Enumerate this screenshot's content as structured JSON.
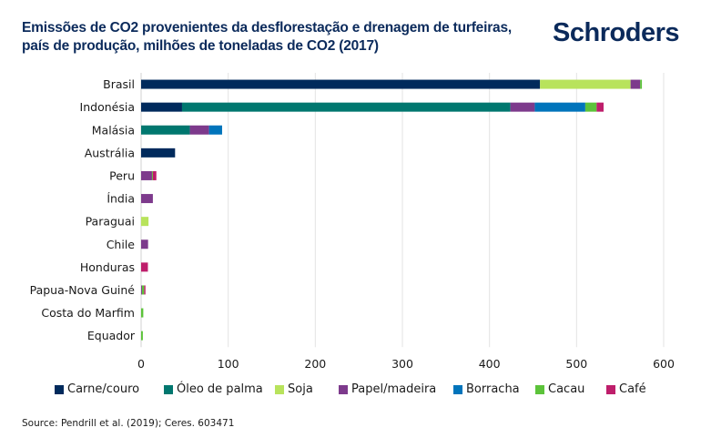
{
  "header": {
    "title": "Emissões de CO2 provenientes da desflorestação e drenagem de turfeiras, país de produção, milhões de toneladas de CO2 (2017)",
    "logo": "Schroders"
  },
  "source": "Source: Pendrill et al. (2019); Ceres. 603471",
  "chart_data": {
    "type": "bar",
    "orientation": "horizontal",
    "stacked": true,
    "title": "Emissões de CO2 provenientes da desflorestação e drenagem de turfeiras, país de produção, milhões de toneladas de CO2 (2017)",
    "xlabel": "",
    "ylabel": "",
    "xlim": [
      0,
      600
    ],
    "xticks": [
      0,
      100,
      200,
      300,
      400,
      500,
      600
    ],
    "grid": true,
    "legend_position": "bottom",
    "categories": [
      "Brasil",
      "Indonésia",
      "Malásia",
      "Austrália",
      "Peru",
      "Índia",
      "Paraguai",
      "Chile",
      "Honduras",
      "Papua-Nova Guiné",
      "Costa do Marfim",
      "Equador"
    ],
    "series": [
      {
        "name": "Carne/couro",
        "color": "#002a5c",
        "values": [
          458,
          47,
          0,
          39,
          0,
          0,
          0,
          0,
          0,
          0,
          0,
          0
        ]
      },
      {
        "name": "Óleo de palma",
        "color": "#00776f",
        "values": [
          0,
          377,
          56,
          0,
          0,
          0,
          0,
          0,
          0,
          0,
          0,
          0
        ]
      },
      {
        "name": "Soja",
        "color": "#b8e35c",
        "values": [
          104,
          0,
          0,
          0,
          0,
          0,
          8.5,
          0,
          0,
          0,
          0,
          0
        ]
      },
      {
        "name": "Papel/madeira",
        "color": "#7d3a8c",
        "values": [
          11,
          28,
          22,
          0,
          12.5,
          13.5,
          0,
          8,
          0,
          1,
          0,
          0
        ]
      },
      {
        "name": "Borracha",
        "color": "#0074bb",
        "values": [
          0,
          58,
          15,
          0,
          0,
          0,
          0,
          0,
          0,
          0,
          0,
          0
        ]
      },
      {
        "name": "Cacau",
        "color": "#5cc33a",
        "values": [
          2,
          13,
          0,
          0,
          1,
          0,
          0,
          0,
          0,
          2.5,
          2.5,
          2
        ]
      },
      {
        "name": "Café",
        "color": "#be1e6b",
        "values": [
          0,
          8,
          0,
          0,
          4,
          0,
          0,
          0,
          7.8,
          1.5,
          0,
          0
        ]
      }
    ]
  }
}
